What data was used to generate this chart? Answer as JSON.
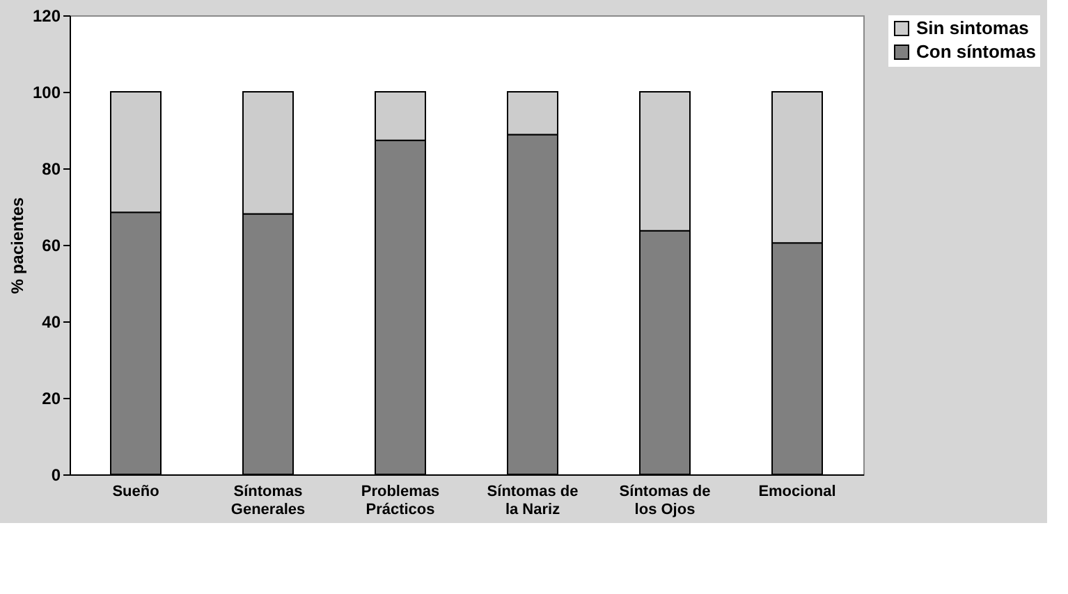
{
  "chart_data": {
    "type": "bar",
    "stacked": true,
    "ylabel": "% pacientes",
    "categories": [
      "Sueño",
      "Síntomas Generales",
      "Problemas Prácticos",
      "Síntomas de la Nariz",
      "Síntomas de los Ojos",
      "Emocional"
    ],
    "series": [
      {
        "name": "Con síntomas",
        "color": "#808080",
        "values": [
          68.5,
          68.1,
          87.3,
          88.8,
          63.7,
          60.5
        ]
      },
      {
        "name": "Sin sintomas",
        "color": "#cccccc",
        "values": [
          31.5,
          31.9,
          12.7,
          11.2,
          36.3,
          39.5
        ]
      }
    ],
    "ylim": [
      0,
      120
    ],
    "yticks": [
      0,
      20,
      40,
      60,
      80,
      100,
      120
    ],
    "grid": false,
    "legend": "right"
  }
}
